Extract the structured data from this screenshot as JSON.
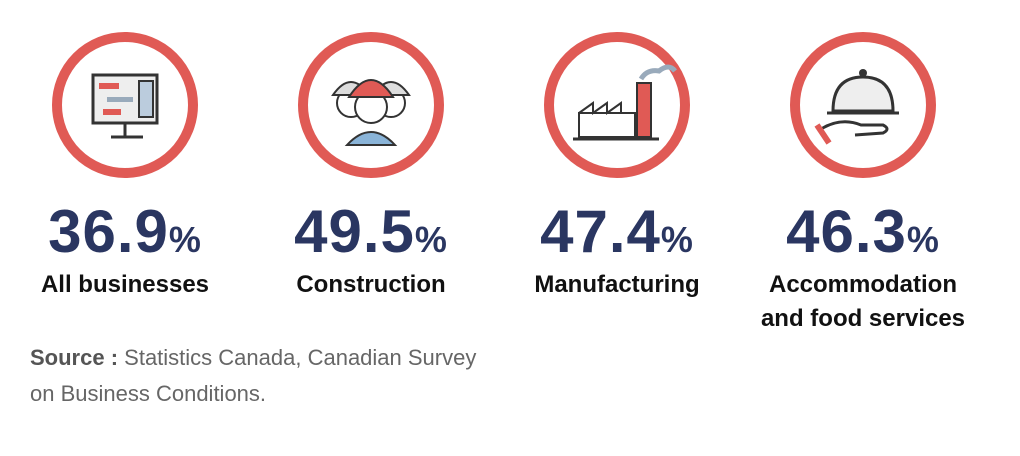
{
  "items": [
    {
      "percent": "36.9",
      "unit": "%",
      "label": [
        "All businesses"
      ]
    },
    {
      "percent": "49.5",
      "unit": "%",
      "label": [
        "Construction"
      ]
    },
    {
      "percent": "47.4",
      "unit": "%",
      "label": [
        "Manufacturing"
      ]
    },
    {
      "percent": "46.3",
      "unit": "%",
      "label": [
        "Accommodation",
        "and food services"
      ]
    }
  ],
  "source": {
    "heading": "Source :",
    "text": [
      "Statistics Canada, Canadian Survey",
      "on Business Conditions."
    ]
  }
}
